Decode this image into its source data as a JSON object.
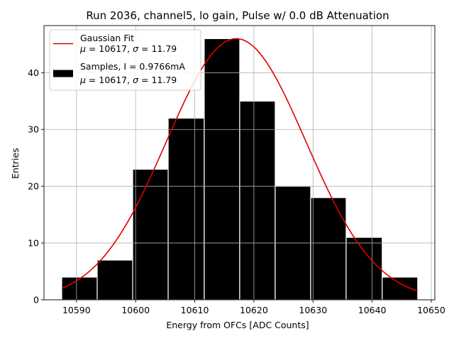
{
  "chart_data": {
    "type": "bar",
    "title": "Run 2036, channel5, lo gain, Pulse w/ 0.0 dB Attenuation",
    "xlabel": "Energy from OFCs [ADC Counts]",
    "ylabel": "Entries",
    "xlim": [
      10584.5,
      10650.6
    ],
    "ylim": [
      0,
      48.3
    ],
    "xticks": [
      10590,
      10600,
      10610,
      10620,
      10630,
      10640,
      10650
    ],
    "yticks": [
      0,
      10,
      20,
      30,
      40
    ],
    "grid": true,
    "legend_position": "top-left",
    "histogram": {
      "bin_edges": [
        10587.5,
        10593.5,
        10599.5,
        10605.5,
        10611.6,
        10617.6,
        10623.6,
        10629.6,
        10635.6,
        10641.7,
        10647.7
      ],
      "counts": [
        4,
        7,
        23,
        32,
        46,
        35,
        20,
        18,
        11,
        4
      ],
      "color": "#000000",
      "edge_color": "#ffffff"
    },
    "fit": {
      "type": "gaussian",
      "mu": 10617,
      "sigma": 11.79,
      "amplitude": 46,
      "color": "#e00000"
    },
    "legend": [
      {
        "kind": "line",
        "color": "#e00000",
        "line1": "Gaussian Fit",
        "line2_prefix": "",
        "line2_mu": " = 10617, ",
        "line2_sigma": " = 11.79"
      },
      {
        "kind": "patch",
        "color": "#000000",
        "line1": "Samples, I = 0.9766mA",
        "line2_prefix": "",
        "line2_mu": " = 10617, ",
        "line2_sigma": " = 11.79"
      }
    ],
    "greek": {
      "mu": "μ",
      "sigma": "σ"
    }
  }
}
